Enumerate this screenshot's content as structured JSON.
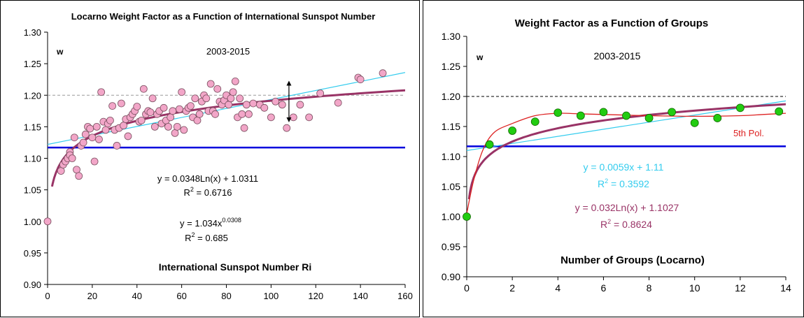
{
  "chart_data": [
    {
      "type": "scatter",
      "title": "Locarno Weight Factor as a Function of International Sunspot Number",
      "xlabel": "International Sunspot Number Ri",
      "ylabel": "",
      "xlim": [
        0,
        160
      ],
      "ylim": [
        0.9,
        1.3
      ],
      "xticks": [
        "0",
        "20",
        "40",
        "60",
        "80",
        "100",
        "120",
        "140",
        "160"
      ],
      "yticks": [
        "0.90",
        "0.95",
        "1.00",
        "1.05",
        "1.10",
        "1.15",
        "1.20",
        "1.25",
        "1.30"
      ],
      "grid": false,
      "legend": "none",
      "annotations": {
        "w_label": "w",
        "period": "2003-2015",
        "eq_log": "y = 0.0348Ln(x) + 1.0311",
        "r2_log_prefix": "R",
        "r2_log_sup": "2",
        "r2_log_value": " = 0.6716",
        "eq_power_base": "y = 1.034x",
        "eq_power_exp": "0.0308",
        "r2_power_prefix": "R",
        "r2_power_sup": "2",
        "r2_power_value": " = 0.685"
      },
      "points": [
        [
          0,
          1.0
        ],
        [
          6,
          1.08
        ],
        [
          7,
          1.09
        ],
        [
          8,
          1.095
        ],
        [
          9,
          1.1
        ],
        [
          10,
          1.11
        ],
        [
          10,
          1.105
        ],
        [
          11,
          1.1
        ],
        [
          12,
          1.133
        ],
        [
          13,
          1.082
        ],
        [
          14,
          1.072
        ],
        [
          15,
          1.12
        ],
        [
          16,
          1.125
        ],
        [
          17,
          1.138
        ],
        [
          18,
          1.15
        ],
        [
          19,
          1.147
        ],
        [
          20,
          1.133
        ],
        [
          21,
          1.095
        ],
        [
          22,
          1.15
        ],
        [
          23,
          1.13
        ],
        [
          24,
          1.205
        ],
        [
          25,
          1.158
        ],
        [
          26,
          1.145
        ],
        [
          27,
          1.155
        ],
        [
          28,
          1.16
        ],
        [
          29,
          1.183
        ],
        [
          30,
          1.145
        ],
        [
          31,
          1.12
        ],
        [
          32,
          1.148
        ],
        [
          33,
          1.187
        ],
        [
          34,
          1.152
        ],
        [
          35,
          1.162
        ],
        [
          36,
          1.135
        ],
        [
          37,
          1.165
        ],
        [
          38,
          1.17
        ],
        [
          39,
          1.175
        ],
        [
          40,
          1.182
        ],
        [
          41,
          1.158
        ],
        [
          42,
          1.16
        ],
        [
          43,
          1.21
        ],
        [
          44,
          1.17
        ],
        [
          45,
          1.175
        ],
        [
          46,
          1.173
        ],
        [
          47,
          1.195
        ],
        [
          48,
          1.15
        ],
        [
          49,
          1.17
        ],
        [
          50,
          1.175
        ],
        [
          51,
          1.155
        ],
        [
          52,
          1.18
        ],
        [
          53,
          1.16
        ],
        [
          54,
          1.15
        ],
        [
          55,
          1.165
        ],
        [
          56,
          1.175
        ],
        [
          57,
          1.14
        ],
        [
          58,
          1.15
        ],
        [
          59,
          1.178
        ],
        [
          60,
          1.205
        ],
        [
          61,
          1.145
        ],
        [
          62,
          1.175
        ],
        [
          63,
          1.18
        ],
        [
          64,
          1.183
        ],
        [
          65,
          1.165
        ],
        [
          66,
          1.195
        ],
        [
          67,
          1.16
        ],
        [
          68,
          1.17
        ],
        [
          69,
          1.19
        ],
        [
          70,
          1.2
        ],
        [
          71,
          1.195
        ],
        [
          72,
          1.175
        ],
        [
          73,
          1.218
        ],
        [
          74,
          1.175
        ],
        [
          75,
          1.17
        ],
        [
          76,
          1.21
        ],
        [
          77,
          1.19
        ],
        [
          78,
          1.185
        ],
        [
          79,
          1.192
        ],
        [
          80,
          1.2
        ],
        [
          81,
          1.185
        ],
        [
          82,
          1.195
        ],
        [
          83,
          1.205
        ],
        [
          84,
          1.222
        ],
        [
          85,
          1.165
        ],
        [
          86,
          1.195
        ],
        [
          87,
          1.17
        ],
        [
          88,
          1.148
        ],
        [
          89,
          1.185
        ],
        [
          90,
          1.17
        ],
        [
          92,
          1.187
        ],
        [
          95,
          1.185
        ],
        [
          97,
          1.18
        ],
        [
          100,
          1.165
        ],
        [
          102,
          1.19
        ],
        [
          105,
          1.185
        ],
        [
          107,
          1.148
        ],
        [
          110,
          1.165
        ],
        [
          113,
          1.185
        ],
        [
          117,
          1.165
        ],
        [
          122,
          1.203
        ],
        [
          130,
          1.188
        ],
        [
          139,
          1.228
        ],
        [
          140,
          1.225
        ],
        [
          150,
          1.235
        ]
      ],
      "lines": [
        {
          "kind": "reference",
          "y": 1.2,
          "color": "#999999",
          "dashed": true
        },
        {
          "kind": "reference",
          "y": 1.117,
          "color": "#0000dd",
          "dashed": false
        },
        {
          "kind": "linear_trend",
          "from": [
            0,
            1.122
          ],
          "to": [
            160,
            1.236
          ],
          "color": "#33ccee"
        },
        {
          "kind": "log_fit",
          "a": 0.0348,
          "b": 1.0311,
          "xmin": 2,
          "color": "#993366"
        },
        {
          "kind": "arrow",
          "x": 108,
          "y1": 1.157,
          "y2": 1.223,
          "color": "#000000"
        }
      ],
      "marker_color": "#f2a6c8",
      "marker_edge": "#7a5060"
    },
    {
      "type": "scatter",
      "title": "Weight Factor as a Function of Groups",
      "xlabel": "Number of Groups (Locarno)",
      "ylabel": "",
      "xlim": [
        0,
        14
      ],
      "ylim": [
        0.9,
        1.3
      ],
      "xticks": [
        "0",
        "2",
        "4",
        "6",
        "8",
        "10",
        "12",
        "14"
      ],
      "yticks": [
        "0.90",
        "0.95",
        "1.00",
        "1.05",
        "1.10",
        "1.15",
        "1.20",
        "1.25",
        "1.30"
      ],
      "grid": false,
      "legend": "none",
      "annotations": {
        "w_label": "w",
        "period": "2003-2015",
        "poly_label": "5th Pol.",
        "eq_linear": "y = 0.0059x + 1.11",
        "r2_linear_prefix": "R",
        "r2_linear_sup": "2",
        "r2_linear_value": " = 0.3592",
        "eq_log": "y = 0.032Ln(x) + 1.1027",
        "r2_log_prefix": "R",
        "r2_log_sup": "2",
        "r2_log_value": " = 0.8624"
      },
      "points": [
        [
          0,
          1.0
        ],
        [
          1,
          1.12
        ],
        [
          2,
          1.143
        ],
        [
          3,
          1.158
        ],
        [
          4,
          1.173
        ],
        [
          5,
          1.168
        ],
        [
          6,
          1.174
        ],
        [
          7,
          1.168
        ],
        [
          8,
          1.164
        ],
        [
          9,
          1.174
        ],
        [
          10,
          1.156
        ],
        [
          11,
          1.164
        ],
        [
          12,
          1.181
        ],
        [
          13.7,
          1.175
        ]
      ],
      "lines": [
        {
          "kind": "reference",
          "y": 1.2,
          "color": "#000000",
          "dashed": true
        },
        {
          "kind": "reference",
          "y": 1.117,
          "color": "#0000dd",
          "dashed": false
        },
        {
          "kind": "linear_fit",
          "a": 0.0059,
          "b": 1.11,
          "color": "#33ccee"
        },
        {
          "kind": "log_fit",
          "a": 0.032,
          "b": 1.1027,
          "xmin": 0.1,
          "color": "#993366"
        },
        {
          "kind": "poly5",
          "pts": [
            [
              0,
              1.005
            ],
            [
              0.3,
              1.06
            ],
            [
              0.7,
              1.11
            ],
            [
              1.2,
              1.14
            ],
            [
              2,
              1.155
            ],
            [
              3,
              1.168
            ],
            [
              4,
              1.172
            ],
            [
              5,
              1.171
            ],
            [
              6,
              1.17
            ],
            [
              8,
              1.168
            ],
            [
              10,
              1.167
            ],
            [
              12,
              1.168
            ],
            [
              13,
              1.17
            ],
            [
              14,
              1.172
            ]
          ],
          "color": "#dd2222"
        }
      ],
      "marker_color": "#22cc11",
      "marker_edge": "#116600"
    }
  ]
}
